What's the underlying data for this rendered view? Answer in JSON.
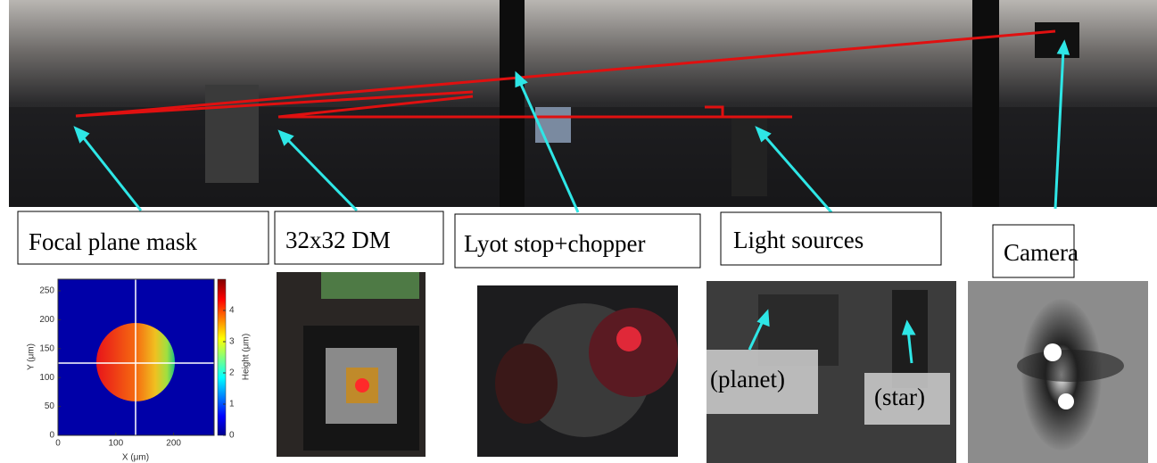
{
  "labels": [
    "Focal plane mask",
    "32x32 DM",
    "Lyot stop+chopper",
    "Light sources",
    "Camera"
  ],
  "inset_labels": [
    "(planet)",
    "(star)"
  ],
  "heatmap": {
    "xlabel": "X (μm)",
    "ylabel": "Y (μm)",
    "colorbar_label": "Height (μm)",
    "xlim": [
      0,
      270
    ],
    "ylim": [
      0,
      270
    ],
    "xticks": [
      0,
      100,
      200
    ],
    "yticks": [
      0,
      50,
      100,
      150,
      200,
      250
    ],
    "clim": [
      0,
      5
    ],
    "cticks": [
      0,
      1,
      2,
      3,
      4
    ]
  }
}
